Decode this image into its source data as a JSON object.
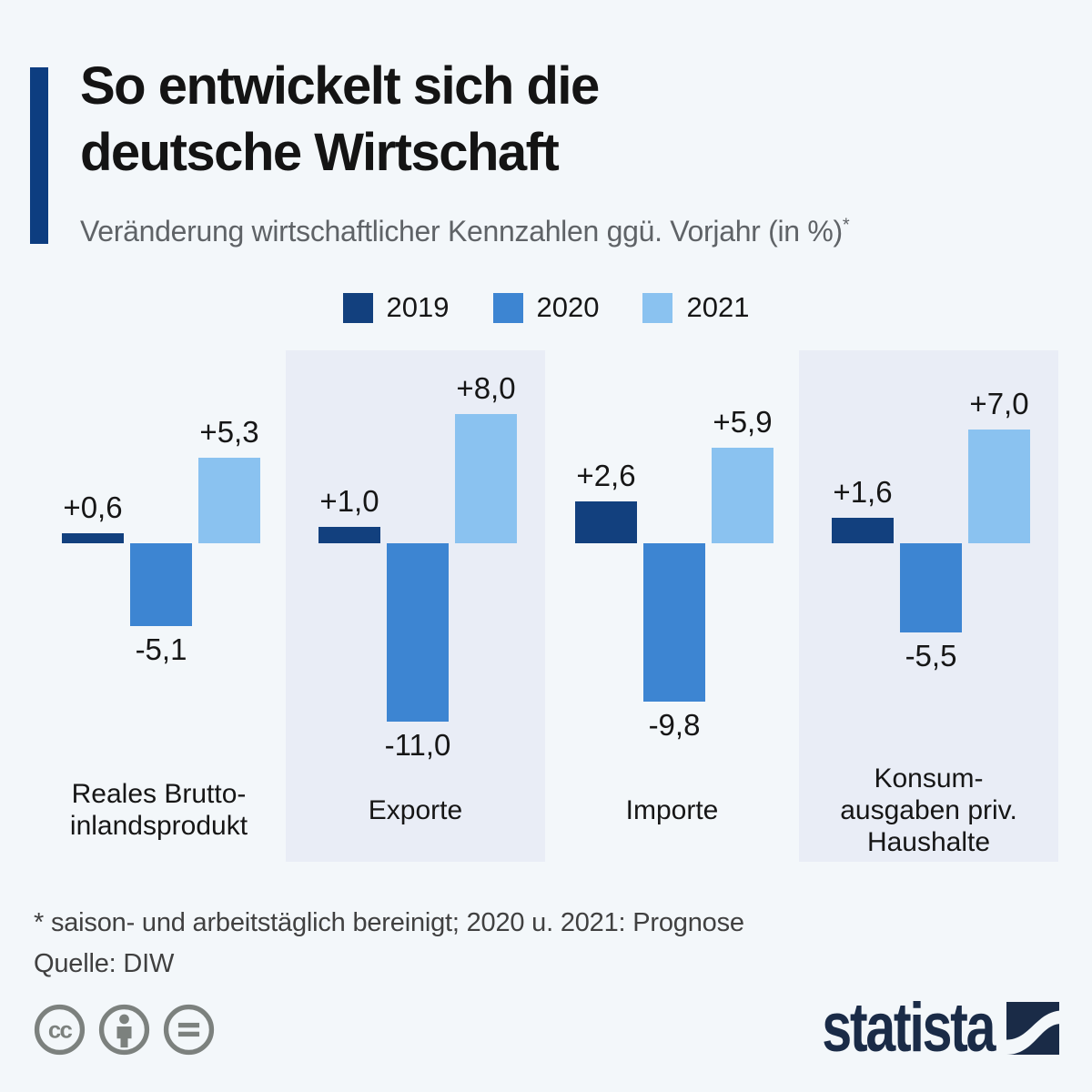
{
  "header": {
    "title_line1": "So entwickelt sich die",
    "title_line2": "deutsche Wirtschaft",
    "subtitle": "Veränderung wirtschaftlicher Kennzahlen ggü. Vorjahr (in %)",
    "subtitle_footnote_marker": "*"
  },
  "legend": [
    {
      "label": "2019",
      "color": "#12407e"
    },
    {
      "label": "2020",
      "color": "#3d85d2"
    },
    {
      "label": "2021",
      "color": "#8ac2f0"
    }
  ],
  "chart_data": {
    "type": "bar",
    "title": "So entwickelt sich die deutsche Wirtschaft",
    "subtitle": "Veränderung wirtschaftlicher Kennzahlen ggü. Vorjahr (in %)*",
    "unit": "%",
    "ylim": [
      -11.0,
      8.0
    ],
    "grid": false,
    "legend_position": "top",
    "categories": [
      [
        "Reales Brutto-",
        "inlandsprodukt"
      ],
      [
        "Exporte"
      ],
      [
        "Importe"
      ],
      [
        "Konsum-",
        "ausgaben priv.",
        "Haushalte"
      ]
    ],
    "highlighted_panels": [
      1,
      3
    ],
    "series": [
      {
        "name": "2019",
        "color": "#12407e",
        "values": [
          0.6,
          1.0,
          2.6,
          1.6
        ],
        "labels": [
          "+0,6",
          "+1,0",
          "+2,6",
          "+1,6"
        ]
      },
      {
        "name": "2020",
        "color": "#3d85d2",
        "values": [
          -5.1,
          -11.0,
          -9.8,
          -5.5
        ],
        "labels": [
          "-5,1",
          "-11,0",
          "-9,8",
          "-5,5"
        ]
      },
      {
        "name": "2021",
        "color": "#8ac2f0",
        "values": [
          5.3,
          8.0,
          5.9,
          7.0
        ],
        "labels": [
          "+5,3",
          "+8,0",
          "+5,9",
          "+7,0"
        ]
      }
    ]
  },
  "footnote": "* saison- und arbeitstäglich bereinigt; 2020 u. 2021: Prognose",
  "source": "Quelle: DIW",
  "footer": {
    "brand_name": "statista",
    "license_icons": [
      "cc-icon",
      "attribution-person-icon",
      "no-derivatives-equals-icon"
    ],
    "icon_color": "#7c817e",
    "brand_color": "#1a2b47"
  }
}
